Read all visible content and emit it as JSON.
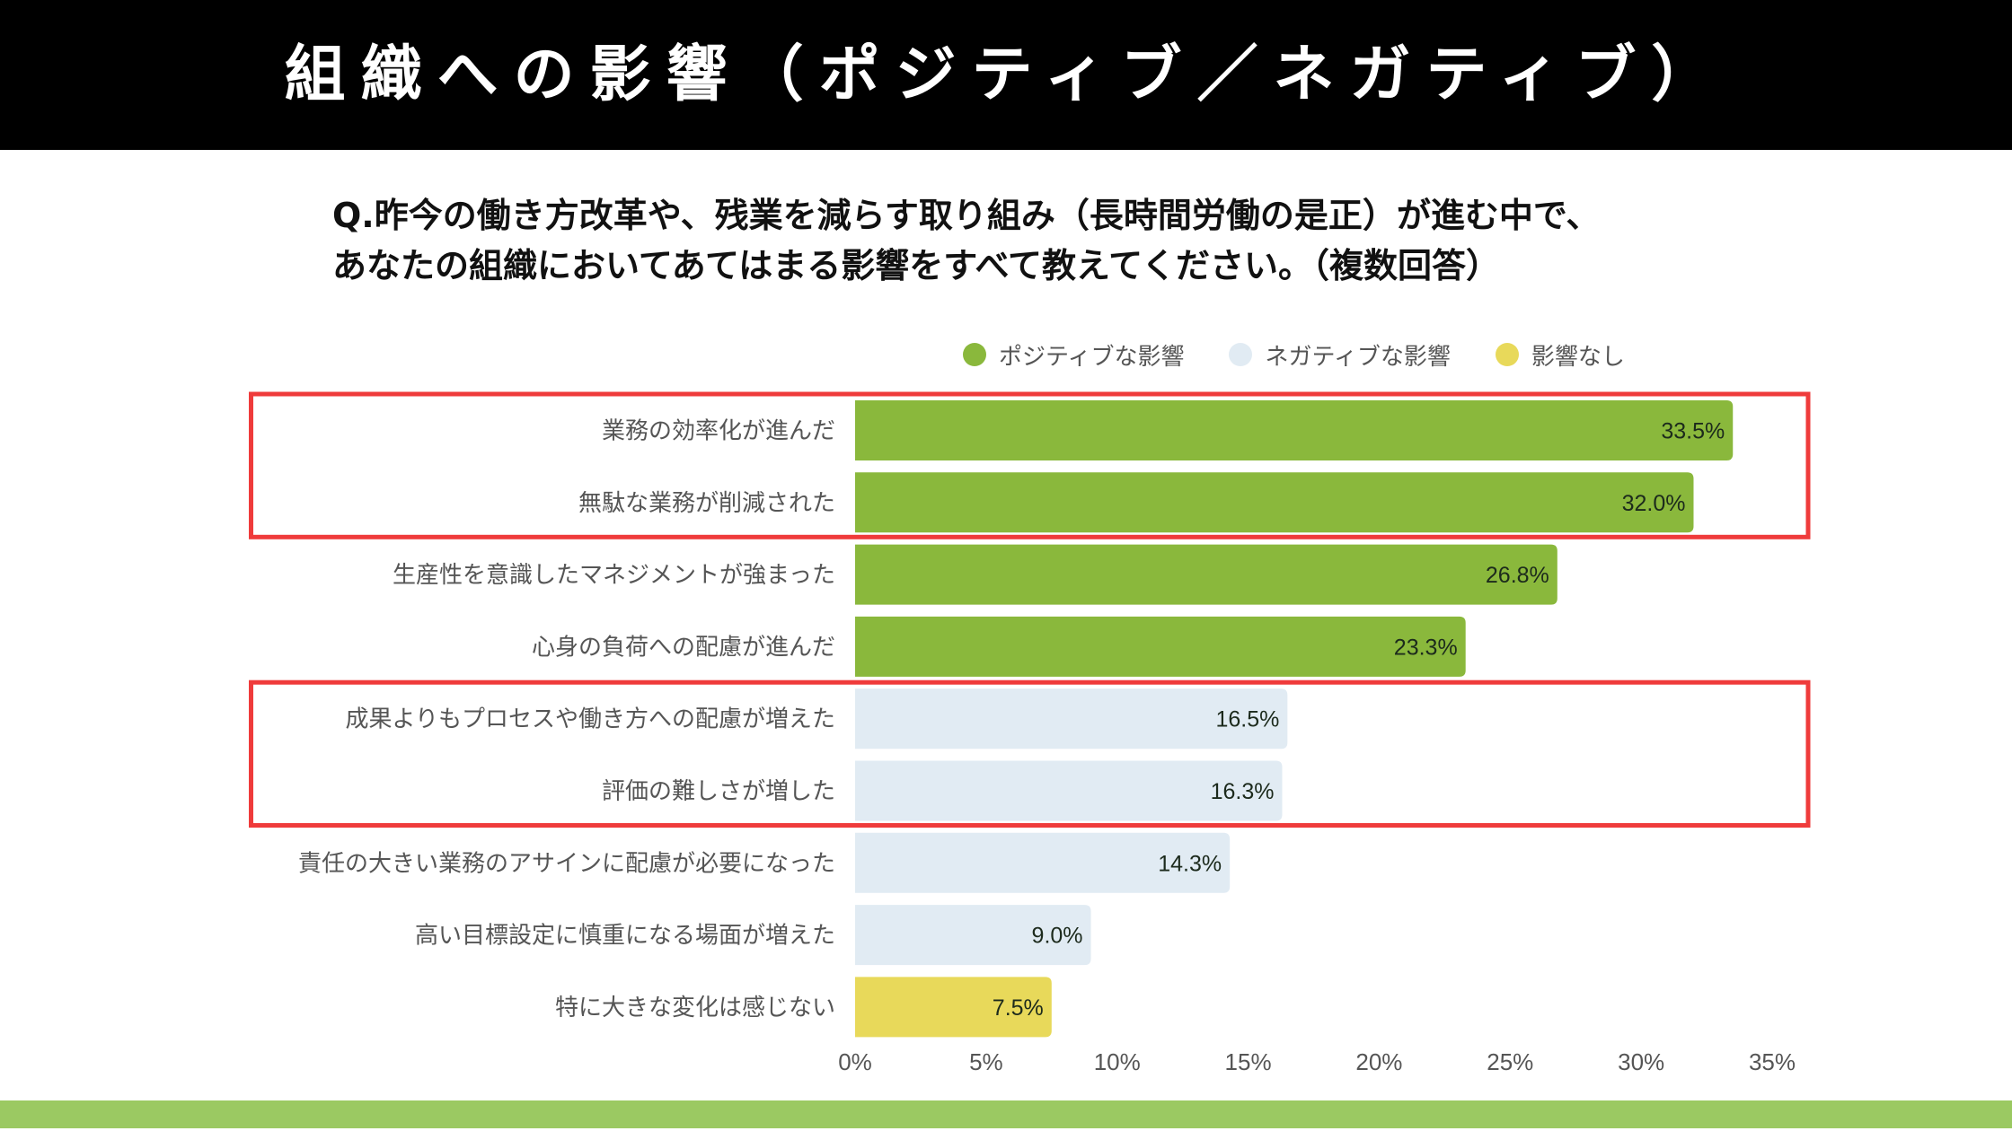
{
  "header": {
    "title": "組織への影響（ポジティブ／ネガティブ）"
  },
  "question": {
    "line1": "Q.昨今の働き方改革や、残業を減らす取り組み（長時間労働の是正）が進む中で、",
    "line2": "あなたの組織においてあてはまる影響をすべて教えてください。（複数回答）"
  },
  "legend": [
    {
      "label": "ポジティブな影響",
      "color": "#8ab83c"
    },
    {
      "label": "ネガティブな影響",
      "color": "#e1ebf3"
    },
    {
      "label": "影響なし",
      "color": "#e8d95a"
    }
  ],
  "colors": {
    "highlight_box": "#ef3b3b",
    "footer": "#9bc962",
    "label_text": "#555555",
    "value_text": "#1c2a1c"
  },
  "chart_data": {
    "type": "bar",
    "orientation": "horizontal",
    "title": "組織への影響（ポジティブ／ネガティブ）",
    "xlabel": "",
    "ylabel": "",
    "xlim": [
      0,
      35
    ],
    "x_ticks": [
      {
        "value": 0,
        "label": "0%"
      },
      {
        "value": 5,
        "label": "5%"
      },
      {
        "value": 10,
        "label": "10%"
      },
      {
        "value": 15,
        "label": "15%"
      },
      {
        "value": 20,
        "label": "20%"
      },
      {
        "value": 25,
        "label": "25%"
      },
      {
        "value": 30,
        "label": "30%"
      },
      {
        "value": 35,
        "label": "35%"
      }
    ],
    "grid": false,
    "legend_position": "top-right",
    "categories": [
      "業務の効率化が進んだ",
      "無駄な業務が削減された",
      "生産性を意識したマネジメントが強まった",
      "心身の負荷への配慮が進んだ",
      "成果よりもプロセスや働き方への配慮が増えた",
      "評価の難しさが増した",
      "責任の大きい業務のアサインに配慮が必要になった",
      "高い目標設定に慎重になる場面が増えた",
      "特に大きな変化は感じない"
    ],
    "values": [
      33.5,
      32.0,
      26.8,
      23.3,
      16.5,
      16.3,
      14.3,
      9.0,
      7.5
    ],
    "value_labels": [
      "33.5%",
      "32.0%",
      "26.8%",
      "23.3%",
      "16.5%",
      "16.3%",
      "14.3%",
      "9.0%",
      "7.5%"
    ],
    "groups": [
      "ポジティブな影響",
      "ポジティブな影響",
      "ポジティブな影響",
      "ポジティブな影響",
      "ネガティブな影響",
      "ネガティブな影響",
      "ネガティブな影響",
      "ネガティブな影響",
      "影響なし"
    ],
    "highlighted_ranges": [
      {
        "from_category": 0,
        "to_category": 1
      },
      {
        "from_category": 4,
        "to_category": 5
      }
    ]
  }
}
